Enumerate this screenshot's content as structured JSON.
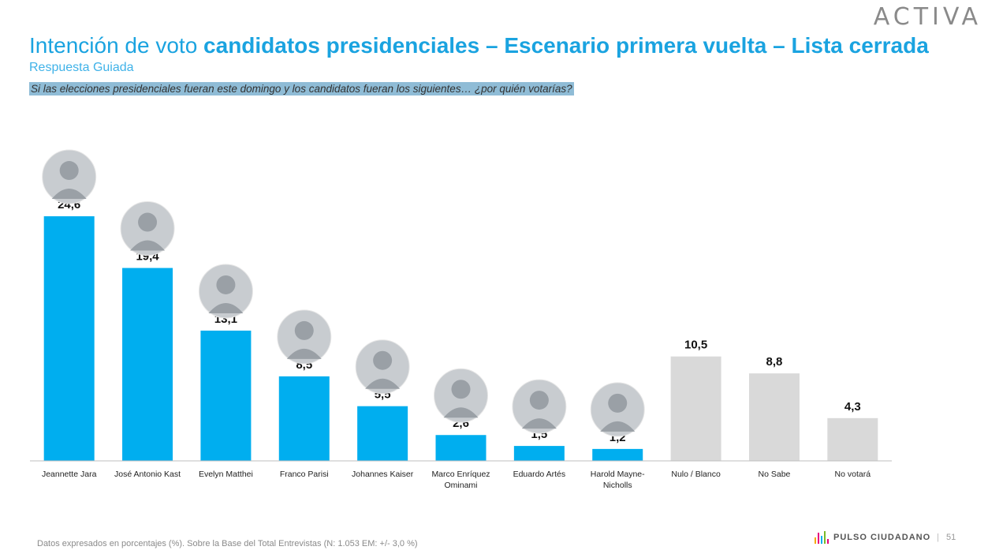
{
  "header": {
    "logo": "ACTIVA",
    "title_light": "Intención de voto ",
    "title_bold": "candidatos presidenciales – Escenario primera vuelta – Lista cerrada",
    "subtitle": "Respuesta Guiada",
    "question": "Si las elecciones presidenciales fueran este domingo y los candidatos fueran los siguientes… ¿por quién votarías?"
  },
  "colors": {
    "primary_bar": "#00aeef",
    "other_bar": "#d9d9d9",
    "title": "#1aa3e0"
  },
  "chart_data": {
    "type": "bar",
    "title": "Intención de voto candidatos presidenciales – Escenario primera vuelta – Lista cerrada",
    "xlabel": "",
    "ylabel": "",
    "ylim": [
      0,
      26
    ],
    "grid": false,
    "categories": [
      [
        "Jeannette Jara"
      ],
      [
        "José Antonio Kast"
      ],
      [
        "Evelyn Matthei"
      ],
      [
        "Franco Parisi"
      ],
      [
        "Johannes Kaiser"
      ],
      [
        "Marco Enríquez",
        "Ominami"
      ],
      [
        "Eduardo Artés"
      ],
      [
        "Harold Mayne-",
        "Nicholls"
      ],
      [
        "Nulo / Blanco"
      ],
      [
        "No Sabe"
      ],
      [
        "No votará"
      ]
    ],
    "values": [
      24.6,
      19.4,
      13.1,
      8.5,
      5.5,
      2.6,
      1.5,
      1.2,
      10.5,
      8.8,
      4.3
    ],
    "value_labels": [
      "24,6",
      "19,4",
      "13,1",
      "8,5",
      "5,5",
      "2,6",
      "1,5",
      "1,2",
      "10,5",
      "8,8",
      "4,3"
    ],
    "is_candidate": [
      true,
      true,
      true,
      true,
      true,
      true,
      true,
      true,
      false,
      false,
      false
    ]
  },
  "footer": {
    "note": "Datos expresados en porcentajes (%). Sobre la Base del Total Entrevistas (N: 1.053  EM: +/- 3,0 %)",
    "brand": "PULSO CIUDADANO",
    "separator": "|",
    "page": "51"
  }
}
